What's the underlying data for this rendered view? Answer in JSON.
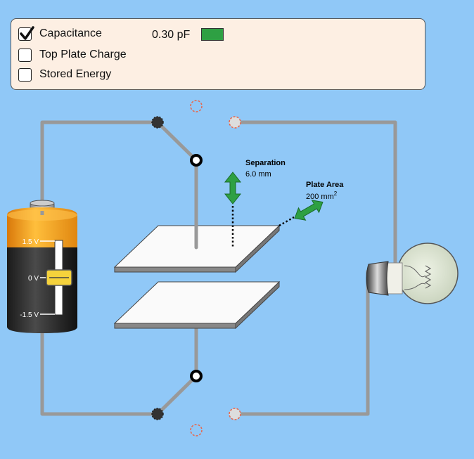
{
  "panel": {
    "checkboxes": [
      {
        "label": "Capacitance",
        "checked": true
      },
      {
        "label": "Top Plate Charge",
        "checked": false
      },
      {
        "label": "Stored Energy",
        "checked": false
      }
    ],
    "capacitance_value": "0.30 pF",
    "capacitance_bar_color": "#2ea043"
  },
  "separation": {
    "title": "Separation",
    "value": "6.0 mm"
  },
  "plate_area": {
    "title": "Plate Area",
    "value": "200 mm",
    "unit_exponent": "2"
  },
  "battery": {
    "tick_top": "1.5 V",
    "tick_mid": "0 V",
    "tick_bottom": "-1.5 V",
    "slider_level_volts": 0
  },
  "colors": {
    "wire": "#999999",
    "arrow": "#2ea043",
    "background": "#90c8f7"
  }
}
